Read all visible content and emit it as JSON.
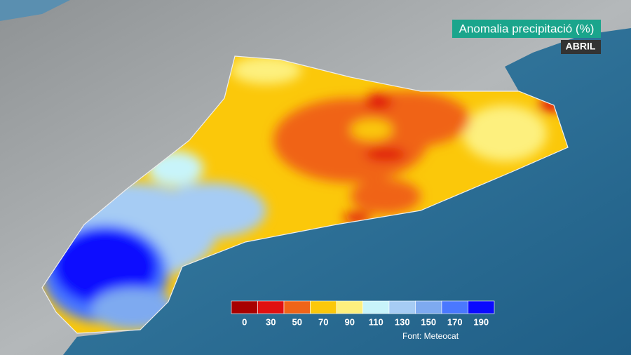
{
  "title": "Anomalia precipitació (%)",
  "subtitle": "ABRIL",
  "legend": {
    "bins": [
      0,
      30,
      50,
      70,
      90,
      110,
      130,
      150,
      170,
      190
    ],
    "colors": [
      "#a80000",
      "#e01010",
      "#f06418",
      "#fbc80a",
      "#fdf07e",
      "#c8f4fa",
      "#a6ccf4",
      "#7eaaf0",
      "#4a78ff",
      "#0a0aff"
    ]
  },
  "source": "Font: Meteocat"
}
